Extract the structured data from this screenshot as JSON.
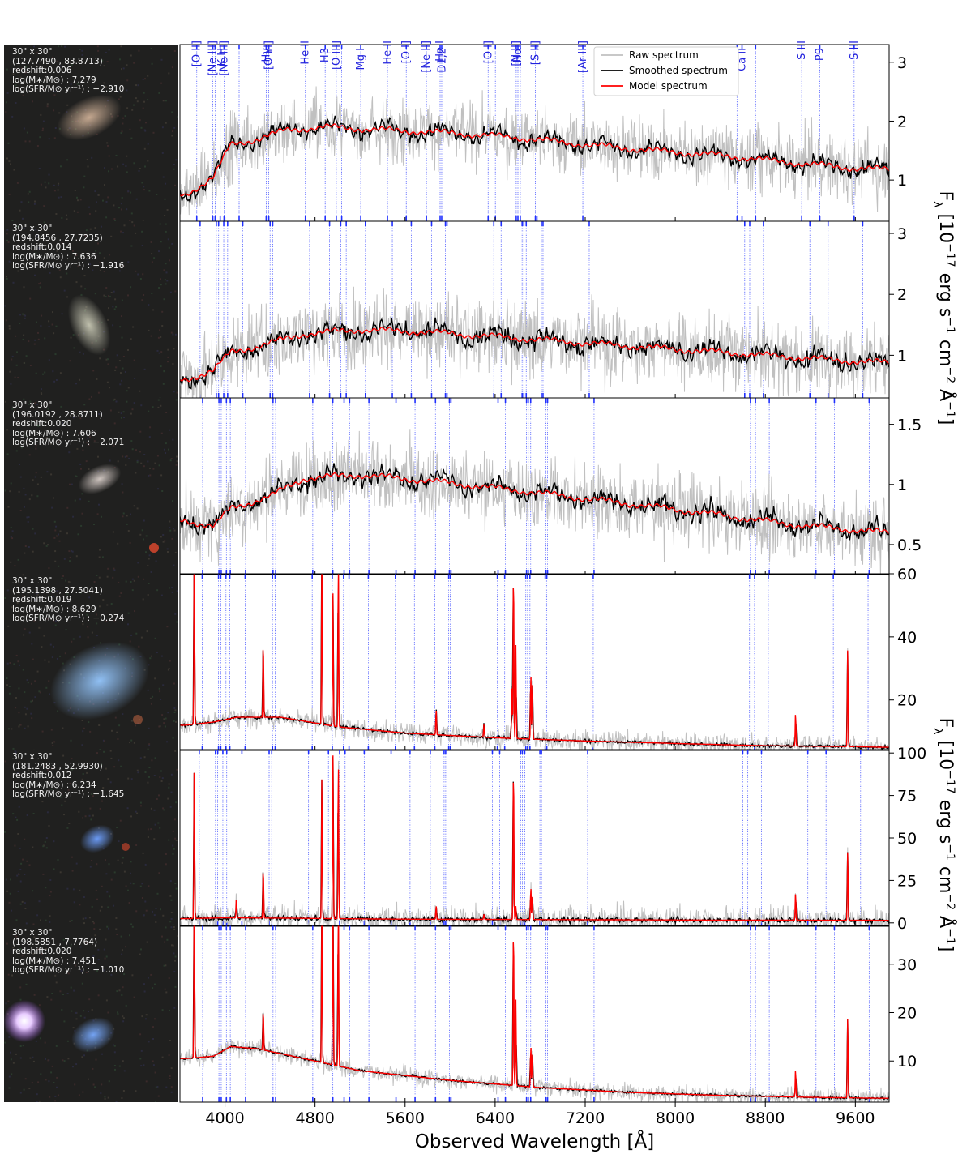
{
  "figure": {
    "xlabel": "Observed Wavelength [Å]",
    "ylabel_top": "F_λ [10^-17 erg s^-1 cm^-2 Å^-1]",
    "ylabel_bottom": "F_λ [10^-17 erg s^-1 cm^-2 Å^-1]",
    "xlim": [
      3600,
      9900
    ],
    "xticks": [
      4000,
      4800,
      5600,
      6400,
      7200,
      8000,
      8800,
      9600
    ],
    "legend": {
      "placement": "top-center (panel 1)",
      "entries": [
        {
          "label": "Raw spectrum",
          "color": "#c0c0c0"
        },
        {
          "label": "Smoothed spectrum",
          "color": "#000000"
        },
        {
          "label": "Model spectrum",
          "color": "#ff0000"
        }
      ]
    },
    "line_label_color": "#2222dd",
    "top_line_labels": [
      {
        "text": "[O II]",
        "wl": 3727
      },
      {
        "text": "[Ne III]",
        "wl": 3869
      },
      {
        "text": "[Ne III]",
        "wl": 3968
      },
      {
        "text": "[O III]",
        "wl": 4363
      },
      {
        "text": "He II",
        "wl": 4686
      },
      {
        "text": "[O III]",
        "wl": 4959
      },
      {
        "text": "He II",
        "wl": 5411
      },
      {
        "text": "[O I]",
        "wl": 5577
      },
      {
        "text": "[Ne II]",
        "wl": 5755
      },
      {
        "text": "He I",
        "wl": 5876
      },
      {
        "text": "[O I]",
        "wl": 6300
      },
      {
        "text": "[N II]",
        "wl": 6548
      },
      {
        "text": "[S II]",
        "wl": 6717
      },
      {
        "text": "[Ar III]",
        "wl": 7136
      },
      {
        "text": "S III",
        "wl": 9069
      },
      {
        "text": "S III",
        "wl": 9532
      }
    ],
    "panel1_line_labels": [
      {
        "text": "K,H",
        "wl": 3950
      },
      {
        "text": "Hγ",
        "wl": 4340
      },
      {
        "text": "Hβ",
        "wl": 4861
      },
      {
        "text": "Mg I",
        "wl": 5175
      },
      {
        "text": "D1,2",
        "wl": 5893
      },
      {
        "text": "Hα",
        "wl": 6563
      },
      {
        "text": "Ca II",
        "wl": 8542
      },
      {
        "text": "P9",
        "wl": 9229
      }
    ]
  },
  "chart_data": [
    {
      "type": "line",
      "image": {
        "size": "30\" x 30\"",
        "coords": "(127.7490 , 83.8713)",
        "redshift": "redshift:0.006",
        "mass": "log(M∗/M⊙) : 7.279",
        "sfr": "log(SFR/M⊙ yr⁻¹) : −2.910"
      },
      "redshift": 0.006,
      "ylim": [
        0.3,
        3.3
      ],
      "yticks": [
        1,
        2,
        3
      ],
      "continuum": [
        [
          3650,
          0.75
        ],
        [
          3900,
          1.05
        ],
        [
          4050,
          1.6
        ],
        [
          4300,
          1.7
        ],
        [
          4550,
          1.85
        ],
        [
          4900,
          1.9
        ],
        [
          5400,
          1.85
        ],
        [
          6000,
          1.8
        ],
        [
          6600,
          1.72
        ],
        [
          7200,
          1.6
        ],
        [
          7800,
          1.5
        ],
        [
          8400,
          1.42
        ],
        [
          9000,
          1.3
        ],
        [
          9600,
          1.2
        ],
        [
          9850,
          1.18
        ]
      ],
      "emission_lines": [],
      "noise": {
        "raw": 0.55,
        "smooth": 0.09
      }
    },
    {
      "type": "line",
      "image": {
        "size": "30\" x 30\"",
        "coords": "(194.8456 , 27.7235)",
        "redshift": "redshift:0.014",
        "mass": "log(M∗/M⊙) : 7.636",
        "sfr": "log(SFR/M⊙ yr⁻¹) : −1.916"
      },
      "redshift": 0.014,
      "ylim": [
        0.3,
        3.2
      ],
      "yticks": [
        1,
        2,
        3
      ],
      "continuum": [
        [
          3650,
          0.6
        ],
        [
          3900,
          0.75
        ],
        [
          4050,
          1.05
        ],
        [
          4300,
          1.15
        ],
        [
          4700,
          1.35
        ],
        [
          5200,
          1.42
        ],
        [
          5800,
          1.38
        ],
        [
          6600,
          1.28
        ],
        [
          7200,
          1.2
        ],
        [
          8000,
          1.1
        ],
        [
          8800,
          1.0
        ],
        [
          9600,
          0.9
        ],
        [
          9850,
          0.88
        ]
      ],
      "emission_lines": [],
      "noise": {
        "raw": 0.6,
        "smooth": 0.13
      }
    },
    {
      "type": "line",
      "image": {
        "size": "30\" x 30\"",
        "coords": "(196.0192 , 28.8711)",
        "redshift": "redshift:0.020",
        "mass": "log(M∗/M⊙) : 7.606",
        "sfr": "log(SFR/M⊙ yr⁻¹) : −2.071"
      },
      "redshift": 0.02,
      "ylim": [
        0.25,
        1.72
      ],
      "yticks": [
        0.5,
        1.0,
        1.5
      ],
      "continuum": [
        [
          3650,
          0.7
        ],
        [
          3900,
          0.65
        ],
        [
          4050,
          0.8
        ],
        [
          4400,
          0.9
        ],
        [
          4700,
          1.05
        ],
        [
          5200,
          1.08
        ],
        [
          5800,
          1.03
        ],
        [
          6600,
          0.95
        ],
        [
          7400,
          0.86
        ],
        [
          8200,
          0.77
        ],
        [
          9000,
          0.67
        ],
        [
          9850,
          0.6
        ]
      ],
      "emission_lines": [],
      "noise": {
        "raw": 0.3,
        "smooth": 0.06
      }
    },
    {
      "type": "line",
      "image": {
        "size": "30\" x 30\"",
        "coords": "(195.1398 , 27.5041)",
        "redshift": "redshift:0.019",
        "mass": "log(M∗/M⊙) : 8.629",
        "sfr": "log(SFR/M⊙ yr⁻¹) : −0.274"
      },
      "redshift": 0.019,
      "ylim": [
        4,
        60
      ],
      "yticks": [
        20,
        40,
        60
      ],
      "continuum": [
        [
          3650,
          12
        ],
        [
          3900,
          13
        ],
        [
          4100,
          14.5
        ],
        [
          4500,
          14.5
        ],
        [
          5000,
          11.5
        ],
        [
          5600,
          9.5
        ],
        [
          6400,
          8
        ],
        [
          7200,
          7
        ],
        [
          8000,
          6.2
        ],
        [
          8800,
          5.5
        ],
        [
          9600,
          5.2
        ],
        [
          9850,
          5
        ]
      ],
      "emission_lines": [
        [
          3727,
          58
        ],
        [
          4340,
          26
        ],
        [
          4861,
          60
        ],
        [
          4959,
          42
        ],
        [
          5007,
          56
        ],
        [
          5876,
          8
        ],
        [
          6300,
          4
        ],
        [
          6548,
          16
        ],
        [
          6563,
          58
        ],
        [
          6584,
          30
        ],
        [
          6717,
          22
        ],
        [
          6731,
          18
        ],
        [
          9069,
          11
        ],
        [
          9532,
          32
        ]
      ],
      "noise": {
        "raw": 1.8,
        "smooth": 0.4
      }
    },
    {
      "type": "line",
      "image": {
        "size": "30\" x 30\"",
        "coords": "(181.2483 , 52.9930)",
        "redshift": "redshift:0.012",
        "mass": "log(M∗/M⊙) : 6.234",
        "sfr": "log(SFR/M⊙ yr⁻¹) : −1.645"
      },
      "redshift": 0.012,
      "ylim": [
        -2,
        102
      ],
      "yticks": [
        0,
        25,
        50,
        75,
        100
      ],
      "continuum": [
        [
          3650,
          2.5
        ],
        [
          4000,
          3
        ],
        [
          4500,
          2.8
        ],
        [
          5500,
          2.2
        ],
        [
          6500,
          2
        ],
        [
          7500,
          1.8
        ],
        [
          8500,
          1.6
        ],
        [
          9850,
          1.5
        ]
      ],
      "emission_lines": [
        [
          3727,
          90
        ],
        [
          4101,
          12
        ],
        [
          4340,
          32
        ],
        [
          4861,
          86
        ],
        [
          4959,
          96
        ],
        [
          5007,
          98
        ],
        [
          5876,
          8
        ],
        [
          6300,
          3
        ],
        [
          6563,
          98
        ],
        [
          6584,
          8
        ],
        [
          6717,
          20
        ],
        [
          6731,
          14
        ],
        [
          9069,
          17
        ],
        [
          9532,
          42
        ]
      ],
      "noise": {
        "raw": 2.2,
        "smooth": 0.6
      }
    },
    {
      "type": "line",
      "image": {
        "size": "30\" x 30\"",
        "coords": "(198.5851 , 7.7764)",
        "redshift": "redshift:0.020",
        "mass": "log(M∗/M⊙) : 7.451",
        "sfr": "log(SFR/M⊙ yr⁻¹) : −1.010"
      },
      "redshift": 0.02,
      "ylim": [
        1.5,
        38
      ],
      "yticks": [
        10,
        20,
        30
      ],
      "continuum": [
        [
          3650,
          10.5
        ],
        [
          3900,
          11
        ],
        [
          4050,
          13
        ],
        [
          4300,
          12.5
        ],
        [
          4700,
          10.5
        ],
        [
          5200,
          8
        ],
        [
          6000,
          6
        ],
        [
          6800,
          4.5
        ],
        [
          7600,
          3.5
        ],
        [
          8400,
          2.9
        ],
        [
          9200,
          2.5
        ],
        [
          9850,
          2.3
        ]
      ],
      "emission_lines": [
        [
          3727,
          36
        ],
        [
          4340,
          9
        ],
        [
          4861,
          36
        ],
        [
          4959,
          36
        ],
        [
          5007,
          36
        ],
        [
          6563,
          36
        ],
        [
          6584,
          18
        ],
        [
          6717,
          9
        ],
        [
          6731,
          7
        ],
        [
          9069,
          6
        ],
        [
          9532,
          17
        ]
      ],
      "noise": {
        "raw": 1.5,
        "smooth": 0.3
      }
    }
  ]
}
